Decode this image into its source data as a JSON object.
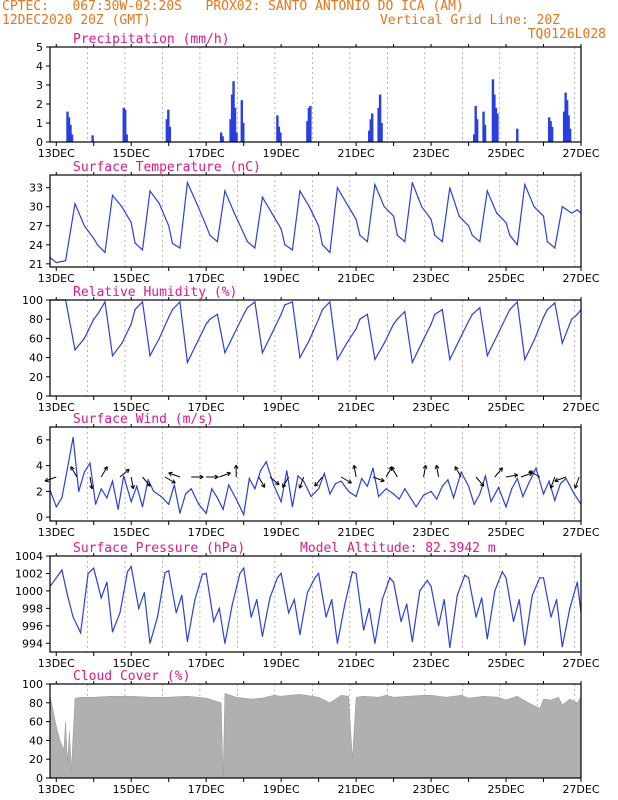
{
  "header": {
    "line1_left": "CPTEC:   067:30W-02:20S   PROX02: SANTO ANTONIO DO ICA (AM)",
    "line2_left": "12DEC2020 20Z (GMT)",
    "line2_right": "Vertical Grid Line: 20Z",
    "line3_right": "TQ0126L028"
  },
  "colors": {
    "header": "#e8741a",
    "title": "#e0188c",
    "line": "#2a3fe0",
    "cloud": "#b0b0b0"
  },
  "x_axis": {
    "start_day": 12.833,
    "end_day": 27.0,
    "ticks": [
      "13DEC",
      "15DEC",
      "17DEC",
      "19DEC",
      "21DEC",
      "23DEC",
      "25DEC",
      "27DEC"
    ]
  },
  "chart_data": [
    {
      "type": "bar",
      "title": "Precipitation (mm/h)",
      "ylim": [
        0,
        5
      ],
      "yticks": [
        0,
        1,
        2,
        3,
        4,
        5
      ],
      "bursts": [
        {
          "day": 13.3,
          "values": [
            1.6,
            1.3,
            0.9,
            0.4
          ]
        },
        {
          "day": 13.97,
          "values": [
            0.35
          ]
        },
        {
          "day": 14.8,
          "values": [
            1.8,
            1.7,
            0.4
          ]
        },
        {
          "day": 15.95,
          "values": [
            1.2,
            1.7,
            0.8
          ]
        },
        {
          "day": 17.4,
          "values": [
            0.5,
            0.3
          ]
        },
        {
          "day": 17.65,
          "values": [
            1.2,
            2.5,
            3.2,
            1.8,
            0.5
          ]
        },
        {
          "day": 17.95,
          "values": [
            2.2,
            1.0
          ]
        },
        {
          "day": 18.9,
          "values": [
            1.4,
            0.8,
            0.5
          ]
        },
        {
          "day": 19.7,
          "values": [
            1.1,
            1.8,
            1.9
          ]
        },
        {
          "day": 21.35,
          "values": [
            0.6,
            1.2,
            1.5
          ]
        },
        {
          "day": 21.6,
          "values": [
            1.8,
            2.5,
            1.0
          ]
        },
        {
          "day": 24.15,
          "values": [
            0.4,
            1.9,
            1.2
          ]
        },
        {
          "day": 24.4,
          "values": [
            1.6,
            0.9
          ]
        },
        {
          "day": 24.65,
          "values": [
            3.3,
            2.5,
            1.8,
            1.5
          ]
        },
        {
          "day": 25.3,
          "values": [
            0.7
          ]
        },
        {
          "day": 26.15,
          "values": [
            1.3,
            1.1,
            0.8
          ]
        },
        {
          "day": 26.55,
          "values": [
            1.6,
            2.6,
            2.2,
            1.4,
            0.7
          ]
        }
      ]
    },
    {
      "type": "line",
      "title": "Surface Temperature (nC)",
      "ylim": [
        20.5,
        35
      ],
      "yticks": [
        21,
        24,
        27,
        30,
        33
      ],
      "x": [
        12.833,
        13.0,
        13.25,
        13.5,
        13.75,
        14.0,
        14.1,
        14.3,
        14.5,
        14.75,
        15.0,
        15.1,
        15.3,
        15.5,
        15.75,
        16.0,
        16.1,
        16.3,
        16.5,
        16.75,
        17.0,
        17.1,
        17.3,
        17.5,
        17.75,
        18.0,
        18.1,
        18.3,
        18.5,
        18.75,
        19.0,
        19.1,
        19.3,
        19.5,
        19.75,
        20.0,
        20.1,
        20.3,
        20.5,
        20.75,
        21.0,
        21.1,
        21.3,
        21.5,
        21.75,
        22.0,
        22.1,
        22.3,
        22.5,
        22.75,
        23.0,
        23.1,
        23.3,
        23.5,
        23.75,
        24.0,
        24.1,
        24.3,
        24.5,
        24.75,
        25.0,
        25.1,
        25.3,
        25.5,
        25.75,
        26.0,
        26.1,
        26.3,
        26.5,
        26.75,
        26.9,
        27.0
      ],
      "y": [
        22.0,
        21.2,
        21.5,
        30.5,
        27.0,
        25.0,
        24.0,
        22.8,
        31.8,
        30.0,
        27.5,
        24.3,
        23.2,
        32.5,
        30.5,
        27.0,
        24.2,
        23.5,
        33.8,
        30.5,
        27.0,
        25.5,
        24.5,
        32.5,
        29.0,
        25.8,
        24.5,
        23.5,
        31.5,
        29.0,
        26.5,
        24.0,
        23.2,
        32.5,
        30.0,
        27.0,
        24.0,
        22.8,
        33.0,
        30.5,
        28.0,
        25.5,
        24.5,
        33.5,
        30.0,
        28.5,
        25.5,
        24.5,
        33.8,
        30.0,
        28.0,
        25.5,
        24.5,
        33.0,
        28.5,
        27.0,
        25.5,
        24.5,
        32.5,
        29.0,
        27.5,
        25.5,
        24.0,
        33.5,
        30.0,
        28.5,
        24.5,
        23.5,
        30.0,
        29.0,
        29.5,
        29.0
      ]
    },
    {
      "type": "line",
      "title": "Relative Humidity (%)",
      "ylim": [
        0,
        100
      ],
      "yticks": [
        0,
        20,
        40,
        60,
        80,
        100
      ],
      "x": [
        12.833,
        13.0,
        13.25,
        13.5,
        13.75,
        14.0,
        14.1,
        14.3,
        14.5,
        14.75,
        15.0,
        15.1,
        15.3,
        15.5,
        15.75,
        16.0,
        16.1,
        16.3,
        16.5,
        16.75,
        17.0,
        17.1,
        17.3,
        17.5,
        17.75,
        18.0,
        18.1,
        18.3,
        18.5,
        18.75,
        19.0,
        19.1,
        19.3,
        19.5,
        19.75,
        20.0,
        20.1,
        20.3,
        20.5,
        20.75,
        21.0,
        21.1,
        21.3,
        21.5,
        21.75,
        22.0,
        22.1,
        22.3,
        22.5,
        22.75,
        23.0,
        23.1,
        23.3,
        23.5,
        23.75,
        24.0,
        24.1,
        24.3,
        24.5,
        24.75,
        25.0,
        25.1,
        25.3,
        25.5,
        25.75,
        26.0,
        26.1,
        26.3,
        26.5,
        26.75,
        26.9,
        27.0
      ],
      "y": [
        100,
        100,
        100,
        48,
        60,
        80,
        85,
        98,
        42,
        55,
        75,
        90,
        98,
        42,
        60,
        82,
        90,
        98,
        35,
        55,
        75,
        80,
        85,
        45,
        65,
        85,
        92,
        98,
        45,
        65,
        85,
        95,
        98,
        40,
        58,
        80,
        90,
        98,
        38,
        55,
        70,
        80,
        85,
        38,
        55,
        75,
        80,
        88,
        35,
        55,
        75,
        85,
        90,
        38,
        58,
        78,
        85,
        92,
        42,
        62,
        82,
        90,
        98,
        38,
        58,
        82,
        90,
        97,
        55,
        80,
        85,
        90
      ]
    },
    {
      "type": "line",
      "title": "Surface Wind (m/s)",
      "ylim": [
        -0.3,
        7
      ],
      "yticks": [
        0,
        2,
        4,
        6
      ],
      "x": [
        12.833,
        13.0,
        13.15,
        13.3,
        13.45,
        13.6,
        13.75,
        13.9,
        14.05,
        14.2,
        14.35,
        14.5,
        14.65,
        14.8,
        15.0,
        15.15,
        15.3,
        15.45,
        15.6,
        15.8,
        16.0,
        16.15,
        16.3,
        16.45,
        16.6,
        16.8,
        17.0,
        17.15,
        17.3,
        17.45,
        17.6,
        17.8,
        18.0,
        18.15,
        18.3,
        18.45,
        18.6,
        18.8,
        19.0,
        19.15,
        19.3,
        19.45,
        19.6,
        19.8,
        20.0,
        20.15,
        20.3,
        20.45,
        20.6,
        20.8,
        21.0,
        21.15,
        21.3,
        21.45,
        21.6,
        21.8,
        22.0,
        22.15,
        22.3,
        22.45,
        22.6,
        22.8,
        23.0,
        23.15,
        23.3,
        23.45,
        23.6,
        23.8,
        24.0,
        24.15,
        24.3,
        24.45,
        24.6,
        24.8,
        25.0,
        25.15,
        25.3,
        25.45,
        25.6,
        25.8,
        26.0,
        26.15,
        26.3,
        26.45,
        26.6,
        26.8,
        27.0
      ],
      "y": [
        2.1,
        0.8,
        1.5,
        3.8,
        6.2,
        2.0,
        3.5,
        4.2,
        1.0,
        2.2,
        1.5,
        2.8,
        0.6,
        3.2,
        1.2,
        2.4,
        0.8,
        2.9,
        2.0,
        1.6,
        1.0,
        2.5,
        0.3,
        1.8,
        2.2,
        1.0,
        0.3,
        2.2,
        1.5,
        0.6,
        2.5,
        1.4,
        0.2,
        3.0,
        2.2,
        3.6,
        4.3,
        2.5,
        1.2,
        3.6,
        0.8,
        3.2,
        2.8,
        1.6,
        2.2,
        3.4,
        1.8,
        2.6,
        2.8,
        2.0,
        1.6,
        3.0,
        2.4,
        3.8,
        1.6,
        2.2,
        1.8,
        1.4,
        2.2,
        1.5,
        0.8,
        1.7,
        2.0,
        1.4,
        2.4,
        2.9,
        1.5,
        3.5,
        2.4,
        1.0,
        1.8,
        3.2,
        1.2,
        2.3,
        0.8,
        2.2,
        3.0,
        1.6,
        2.6,
        3.8,
        1.8,
        2.8,
        1.3,
        2.6,
        3.0,
        1.9,
        1.0
      ]
    },
    {
      "type": "line",
      "title": "Surface Pressure (hPa)",
      "annotation": "Model Altitude: 82.3942 m",
      "ylim": [
        993,
        1004
      ],
      "yticks": [
        994,
        996,
        998,
        1000,
        1002,
        1004
      ],
      "x": [
        12.833,
        13.0,
        13.15,
        13.3,
        13.45,
        13.65,
        13.85,
        14.0,
        14.2,
        14.35,
        14.5,
        14.7,
        14.9,
        15.0,
        15.2,
        15.35,
        15.5,
        15.7,
        15.9,
        16.0,
        16.2,
        16.35,
        16.5,
        16.7,
        16.9,
        17.0,
        17.2,
        17.35,
        17.5,
        17.7,
        17.9,
        18.0,
        18.2,
        18.35,
        18.5,
        18.7,
        18.9,
        19.0,
        19.2,
        19.35,
        19.5,
        19.7,
        19.9,
        20.0,
        20.2,
        20.35,
        20.5,
        20.7,
        20.9,
        21.0,
        21.2,
        21.35,
        21.5,
        21.7,
        21.9,
        22.0,
        22.2,
        22.35,
        22.5,
        22.7,
        22.9,
        23.0,
        23.2,
        23.35,
        23.5,
        23.7,
        23.9,
        24.0,
        24.2,
        24.35,
        24.5,
        24.7,
        24.9,
        25.0,
        25.2,
        25.35,
        25.5,
        25.7,
        25.9,
        26.0,
        26.2,
        26.35,
        26.5,
        26.7,
        26.9,
        27.0
      ],
      "y": [
        1000.5,
        1001.5,
        1002.4,
        999.5,
        997.0,
        995.2,
        1002.0,
        1002.6,
        999.2,
        1001.0,
        995.3,
        997.5,
        1002.2,
        1002.8,
        998.0,
        999.8,
        994.0,
        997.0,
        1002.1,
        1002.3,
        997.5,
        999.5,
        994.2,
        999.0,
        1001.9,
        1002.0,
        996.5,
        998.0,
        994.0,
        998.5,
        1002.0,
        1002.6,
        997.0,
        999.0,
        994.8,
        999.2,
        1001.5,
        1002.0,
        997.5,
        999.0,
        995.0,
        999.8,
        1001.5,
        1002.0,
        997.0,
        999.0,
        994.0,
        998.5,
        1002.2,
        1002.0,
        995.5,
        998.0,
        994.0,
        999.0,
        1001.5,
        1001.0,
        996.5,
        998.5,
        994.2,
        1000.0,
        1001.2,
        1000.5,
        996.0,
        999.0,
        993.5,
        999.5,
        1001.8,
        1001.5,
        997.0,
        999.2,
        994.5,
        1000.0,
        1002.2,
        1001.5,
        996.5,
        999.0,
        993.8,
        999.5,
        1001.5,
        1001.5,
        997.0,
        999.0,
        993.6,
        998.0,
        1001.0,
        997.5
      ]
    },
    {
      "type": "area",
      "title": "Cloud Cover (%)",
      "ylim": [
        0,
        100
      ],
      "yticks": [
        0,
        20,
        40,
        60,
        80,
        100
      ],
      "x": [
        12.833,
        13.0,
        13.1,
        13.2,
        13.25,
        13.3,
        13.35,
        13.4,
        13.5,
        13.7,
        14.0,
        14.5,
        15.0,
        15.5,
        16.0,
        16.5,
        17.0,
        17.4,
        17.45,
        17.5,
        17.8,
        18.2,
        18.5,
        18.8,
        19.0,
        19.5,
        20.0,
        20.3,
        20.6,
        20.8,
        20.9,
        21.0,
        21.2,
        21.6,
        21.8,
        22.0,
        22.4,
        22.8,
        23.0,
        23.4,
        23.8,
        24.0,
        24.4,
        24.8,
        25.0,
        25.3,
        25.6,
        25.9,
        26.0,
        26.2,
        26.4,
        26.5,
        26.7,
        26.9,
        27.0
      ],
      "y": [
        88,
        55,
        40,
        30,
        60,
        15,
        50,
        8,
        85,
        86,
        86,
        87,
        87,
        86,
        86,
        87,
        85,
        80,
        0,
        90,
        86,
        84,
        85,
        88,
        87,
        89,
        86,
        80,
        88,
        87,
        20,
        86,
        87,
        86,
        88,
        86,
        87,
        88,
        88,
        86,
        88,
        85,
        87,
        86,
        83,
        87,
        80,
        74,
        84,
        83,
        86,
        78,
        84,
        80,
        87
      ]
    }
  ]
}
